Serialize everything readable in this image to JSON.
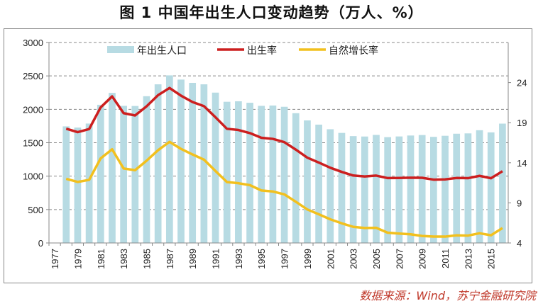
{
  "title": "图 1  中国年出生人口变动趋势（万人、%）",
  "source": "数据来源：Wind，苏宁金融研究院",
  "chart_data": {
    "type": "bar+line",
    "title": "图 1  中国年出生人口变动趋势（万人、%）",
    "categories": [
      1977,
      1978,
      1979,
      1980,
      1981,
      1982,
      1983,
      1984,
      1985,
      1986,
      1987,
      1988,
      1989,
      1990,
      1991,
      1992,
      1993,
      1994,
      1995,
      1996,
      1997,
      1998,
      1999,
      2000,
      2001,
      2002,
      2003,
      2004,
      2005,
      2006,
      2007,
      2008,
      2009,
      2010,
      2011,
      2012,
      2013,
      2014,
      2015,
      2016
    ],
    "x_tick_labels": [
      "1977",
      "1979",
      "1981",
      "1983",
      "1985",
      "1987",
      "1989",
      "1991",
      "1993",
      "1995",
      "1997",
      "1999",
      "2001",
      "2003",
      "2005",
      "2007",
      "2009",
      "2011",
      "2013",
      "2015"
    ],
    "left_axis": {
      "ylim": [
        0,
        3000
      ],
      "ticks": [
        "0",
        "500",
        "1000",
        "1500",
        "2000",
        "2500",
        "3000"
      ]
    },
    "right_axis": {
      "ylim": [
        4,
        29
      ],
      "ticks": [
        "4",
        "9",
        "14",
        "19",
        "24"
      ]
    },
    "grid": "horizontal dashed",
    "legend_position": "top",
    "series": [
      {
        "name": "年出生人口",
        "type": "bar",
        "axis": "left",
        "color": "#b7dbe3",
        "values": [
          null,
          1745,
          1727,
          1787,
          2068,
          2246,
          2052,
          2050,
          2196,
          2374,
          2508,
          2445,
          2396,
          2374,
          2250,
          2113,
          2120,
          2098,
          2052,
          2057,
          2038,
          1942,
          1834,
          1771,
          1702,
          1647,
          1599,
          1593,
          1617,
          1584,
          1594,
          1608,
          1615,
          1588,
          1604,
          1635,
          1640,
          1687,
          1655,
          1786
        ]
      },
      {
        "name": "出生率",
        "type": "line",
        "axis": "right",
        "color": "#cc1f1f",
        "values": [
          null,
          18.25,
          17.82,
          18.21,
          20.91,
          22.28,
          20.19,
          19.9,
          21.04,
          22.43,
          23.33,
          22.37,
          21.58,
          21.06,
          19.68,
          18.24,
          18.09,
          17.7,
          17.12,
          16.98,
          16.57,
          15.64,
          14.64,
          14.03,
          13.38,
          12.86,
          12.41,
          12.29,
          12.4,
          12.09,
          12.1,
          12.14,
          12.13,
          11.9,
          11.93,
          12.1,
          12.08,
          12.37,
          12.07,
          12.95
        ]
      },
      {
        "name": "自然增长率",
        "type": "line",
        "axis": "right",
        "color": "#f2c01e",
        "values": [
          null,
          12.0,
          11.61,
          11.87,
          14.55,
          15.68,
          13.29,
          13.08,
          14.26,
          15.57,
          16.61,
          15.73,
          15.04,
          14.39,
          12.98,
          11.6,
          11.45,
          11.21,
          10.55,
          10.42,
          10.06,
          9.14,
          8.18,
          7.58,
          6.95,
          6.45,
          6.01,
          5.87,
          5.89,
          5.28,
          5.17,
          5.08,
          4.87,
          4.79,
          4.79,
          4.95,
          4.92,
          5.21,
          4.96,
          5.86
        ]
      }
    ]
  }
}
